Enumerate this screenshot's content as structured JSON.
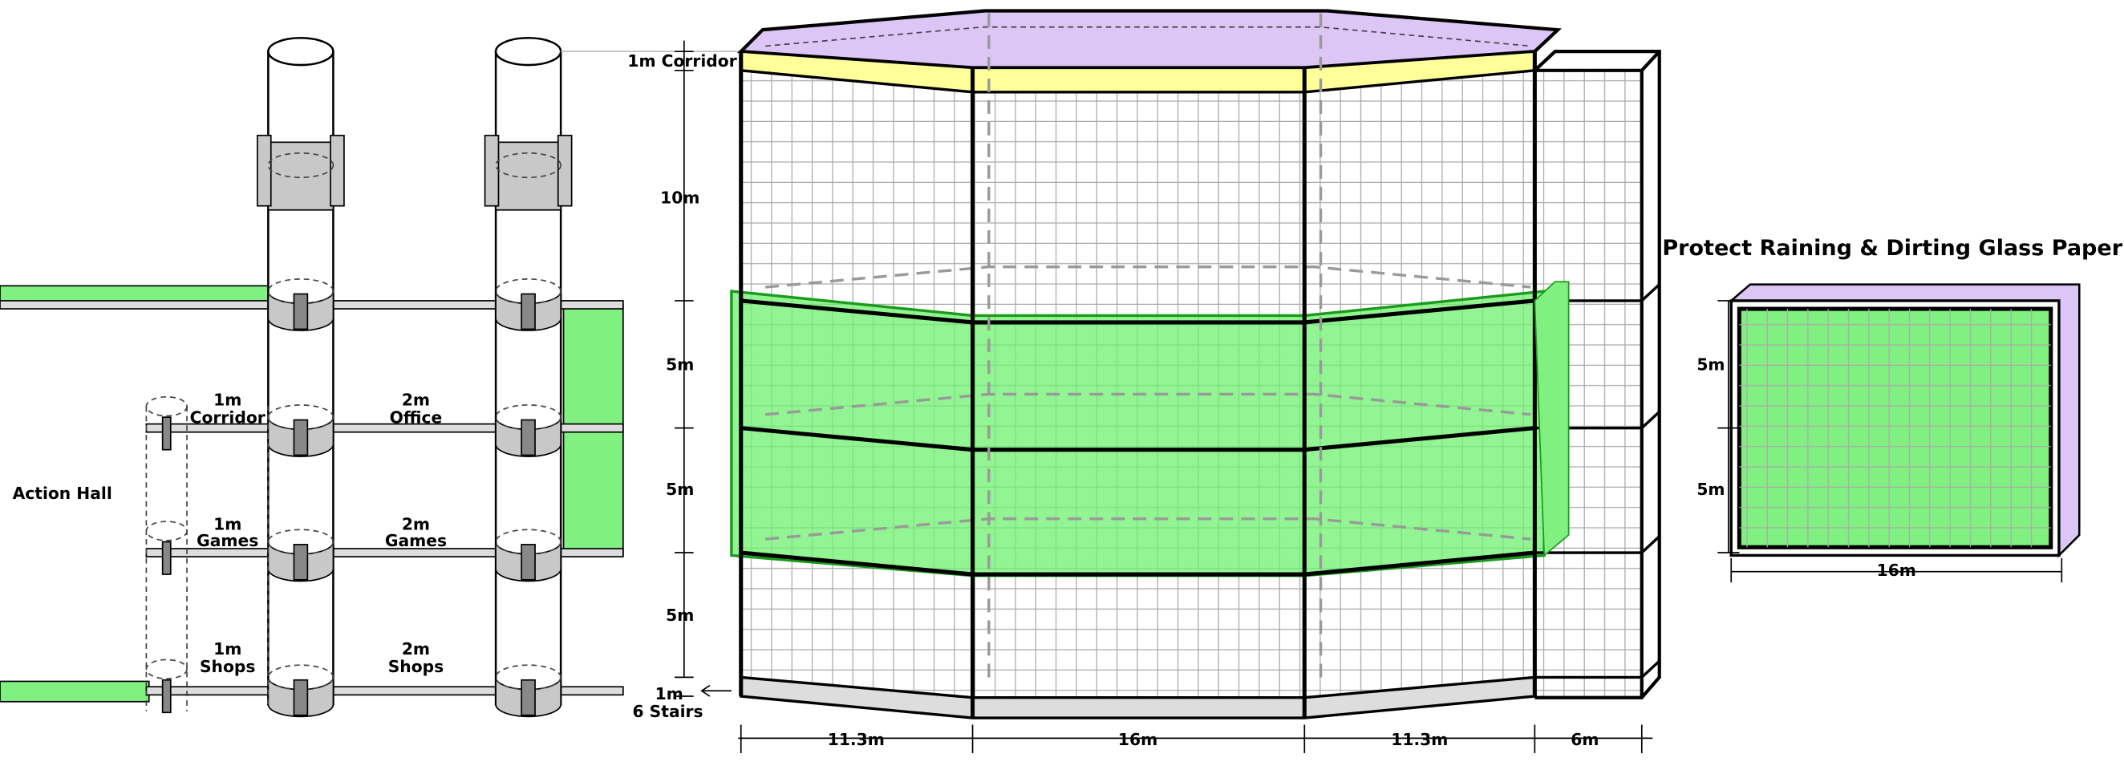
{
  "side_view": {
    "hall": "Action Hall",
    "floors": [
      {
        "left": {
          "size": "1m",
          "use": "Corridor"
        },
        "right": {
          "size": "2m",
          "use": "Office"
        }
      },
      {
        "left": {
          "size": "1m",
          "use": "Games"
        },
        "right": {
          "size": "2m",
          "use": "Games"
        }
      },
      {
        "left": {
          "size": "1m",
          "use": "Shops"
        },
        "right": {
          "size": "2m",
          "use": "Shops"
        }
      }
    ]
  },
  "front_view": {
    "roof_label": "1m Corridor",
    "heights": [
      "10m",
      "5m",
      "5m",
      "5m"
    ],
    "base": {
      "size": "1m",
      "label": "6 Stairs"
    },
    "widths": [
      "11.3m",
      "16m",
      "11.3m",
      "6m"
    ]
  },
  "glass_paper": {
    "title": "Protect Raining & Dirting Glass Paper",
    "heights": [
      "5m",
      "5m"
    ],
    "width": "16m"
  }
}
